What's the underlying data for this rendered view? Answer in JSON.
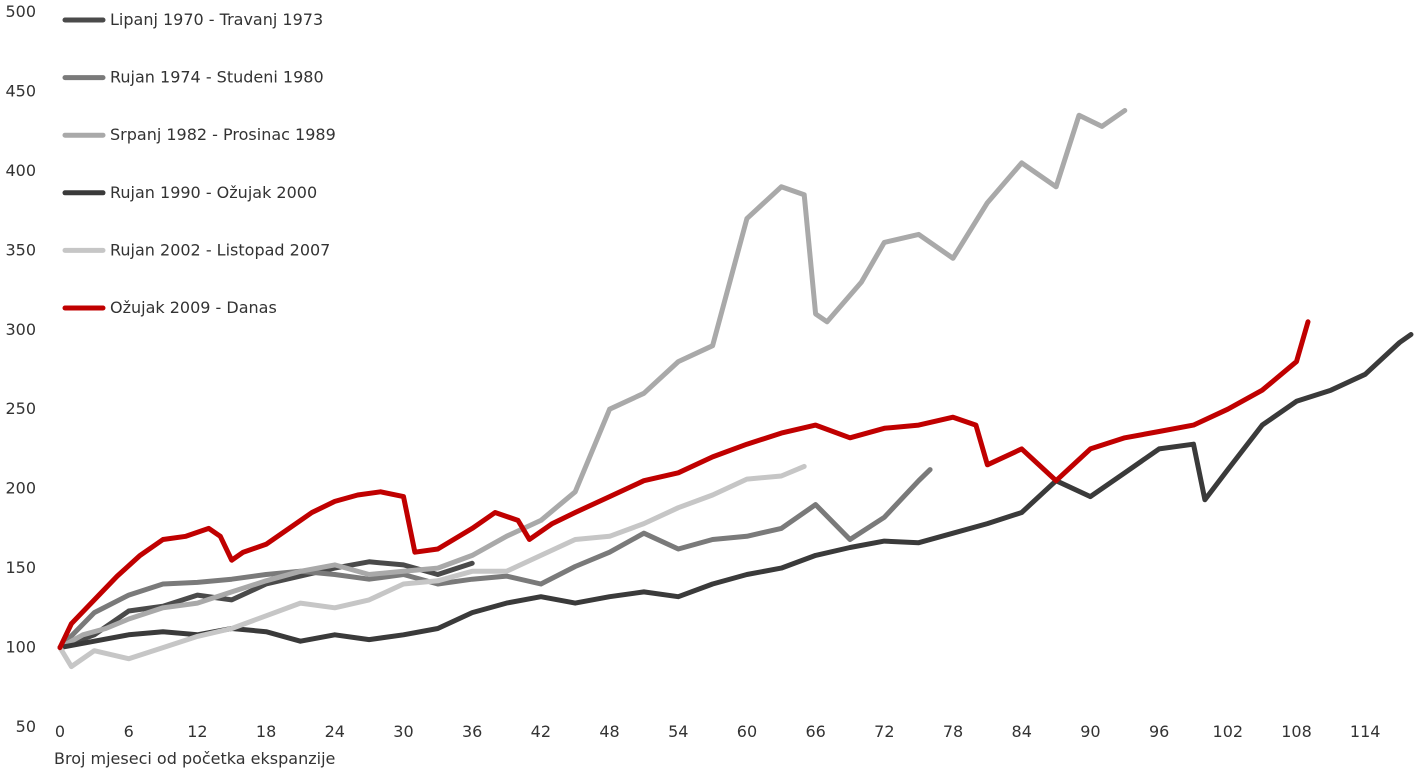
{
  "chart_data": {
    "type": "line",
    "xlabel": "Broj mjeseci od početka ekspanzije",
    "ylabel": "",
    "xlim": [
      0,
      118
    ],
    "ylim": [
      50,
      500
    ],
    "x_ticks": [
      0,
      6,
      12,
      18,
      24,
      30,
      36,
      42,
      48,
      54,
      60,
      66,
      72,
      78,
      84,
      90,
      96,
      102,
      108,
      114
    ],
    "y_ticks": [
      50,
      100,
      150,
      200,
      250,
      300,
      350,
      400,
      450,
      500
    ],
    "grid": false,
    "legend_position": "top-left",
    "series": [
      {
        "name": "Lipanj 1970 - Travanj 1973",
        "color": "#4a4a4a",
        "x": [
          0,
          3,
          6,
          9,
          12,
          15,
          18,
          21,
          24,
          27,
          30,
          33,
          36
        ],
        "values": [
          100,
          108,
          123,
          126,
          133,
          130,
          140,
          145,
          150,
          154,
          152,
          146,
          153
        ]
      },
      {
        "name": "Rujan 1974 - Studeni 1980",
        "color": "#7a7a7a",
        "x": [
          0,
          3,
          6,
          9,
          12,
          15,
          18,
          21,
          24,
          27,
          30,
          33,
          36,
          39,
          42,
          45,
          48,
          51,
          54,
          57,
          60,
          63,
          66,
          69,
          72,
          75,
          76
        ],
        "values": [
          100,
          122,
          133,
          140,
          141,
          143,
          146,
          148,
          146,
          143,
          146,
          140,
          143,
          145,
          140,
          151,
          160,
          172,
          162,
          168,
          170,
          175,
          190,
          168,
          182,
          205,
          212
        ]
      },
      {
        "name": "Srpanj 1982 - Prosinac 1989",
        "color": "#a9a9a9",
        "x": [
          0,
          2,
          4,
          6,
          9,
          12,
          15,
          18,
          21,
          24,
          27,
          30,
          33,
          36,
          39,
          42,
          45,
          48,
          51,
          54,
          57,
          60,
          63,
          65,
          66,
          67,
          70,
          72,
          75,
          78,
          81,
          84,
          87,
          89,
          91,
          93
        ],
        "values": [
          100,
          108,
          112,
          118,
          125,
          128,
          135,
          142,
          148,
          152,
          146,
          148,
          150,
          158,
          170,
          180,
          198,
          250,
          260,
          280,
          290,
          370,
          390,
          385,
          310,
          305,
          330,
          355,
          360,
          345,
          380,
          405,
          390,
          435,
          428,
          438
        ]
      },
      {
        "name": "Rujan 1990 - Ožujak 2000",
        "color": "#3a3a3a",
        "x": [
          0,
          3,
          6,
          9,
          12,
          15,
          18,
          21,
          24,
          27,
          30,
          33,
          36,
          39,
          42,
          45,
          48,
          51,
          54,
          57,
          60,
          63,
          66,
          69,
          72,
          75,
          78,
          81,
          84,
          87,
          90,
          93,
          96,
          99,
          100,
          102,
          105,
          108,
          111,
          114,
          117,
          118
        ],
        "values": [
          100,
          104,
          108,
          110,
          108,
          112,
          110,
          104,
          108,
          105,
          108,
          112,
          122,
          128,
          132,
          128,
          132,
          135,
          132,
          140,
          146,
          150,
          158,
          163,
          167,
          166,
          172,
          178,
          185,
          205,
          195,
          210,
          225,
          228,
          193,
          212,
          240,
          255,
          262,
          272,
          292,
          297
        ]
      },
      {
        "name": "Rujan 2002 - Listopad 2007",
        "color": "#c6c6c6",
        "x": [
          0,
          1,
          3,
          6,
          9,
          12,
          15,
          18,
          21,
          24,
          27,
          30,
          33,
          36,
          39,
          42,
          45,
          48,
          51,
          54,
          57,
          60,
          63,
          65
        ],
        "values": [
          100,
          88,
          98,
          93,
          100,
          107,
          112,
          120,
          128,
          125,
          130,
          140,
          142,
          148,
          148,
          158,
          168,
          170,
          178,
          188,
          196,
          206,
          208,
          214
        ]
      },
      {
        "name": "Ožujak 2009 - Danas",
        "color": "#c00000",
        "x": [
          0,
          1,
          3,
          5,
          7,
          9,
          11,
          13,
          14,
          15,
          16,
          18,
          20,
          22,
          24,
          26,
          28,
          30,
          31,
          33,
          36,
          38,
          40,
          41,
          43,
          45,
          48,
          51,
          54,
          57,
          60,
          63,
          66,
          69,
          72,
          75,
          78,
          80,
          81,
          84,
          87,
          90,
          93,
          96,
          99,
          102,
          105,
          108,
          109
        ],
        "values": [
          100,
          115,
          130,
          145,
          158,
          168,
          170,
          175,
          170,
          155,
          160,
          165,
          175,
          185,
          192,
          196,
          198,
          195,
          160,
          162,
          175,
          185,
          180,
          168,
          178,
          185,
          195,
          205,
          210,
          220,
          228,
          235,
          240,
          232,
          238,
          240,
          245,
          240,
          215,
          225,
          205,
          225,
          232,
          236,
          240,
          250,
          262,
          280,
          305
        ]
      }
    ]
  }
}
